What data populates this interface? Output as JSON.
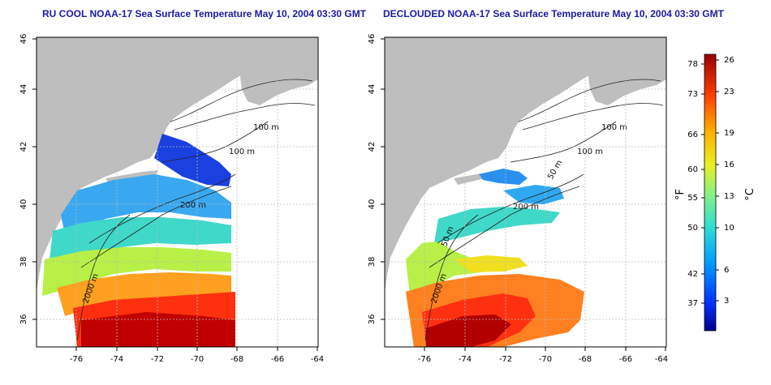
{
  "panels": [
    {
      "title": "RU COOL NOAA-17 Sea Surface Temperature May 10, 2004 03:30 GMT",
      "x_ticks": [
        "-76",
        "-74",
        "-72",
        "-70",
        "-68",
        "-66",
        "-64"
      ],
      "y_ticks": [
        "36",
        "38",
        "40",
        "42",
        "44",
        "46"
      ],
      "contour_labels": [
        "100 m",
        "100 m",
        "200 m",
        "2000 m"
      ]
    },
    {
      "title": "DECLOUDED NOAA-17 Sea Surface Temperature May 10, 2004 03:30 GMT",
      "x_ticks": [
        "-76",
        "-74",
        "-72",
        "-70",
        "-68",
        "-66",
        "-64"
      ],
      "y_ticks": [
        "36",
        "38",
        "40",
        "42",
        "44",
        "46"
      ],
      "contour_labels": [
        "100 m",
        "100 m",
        "50 m",
        "200 m",
        "50 m",
        "2000 m"
      ]
    }
  ],
  "colorbar": {
    "left_unit": "°F",
    "right_unit": "°C",
    "fahrenheit_ticks": [
      "78",
      "73",
      "66",
      "60",
      "55",
      "50",
      "42",
      "37"
    ],
    "celsius_ticks": [
      "26",
      "23",
      "19",
      "16",
      "13",
      "10",
      "6",
      "3"
    ]
  },
  "colors": {
    "land": "#bebebe",
    "sst_scale": [
      "#00008b",
      "#0040ff",
      "#00b0ff",
      "#40e0c0",
      "#a0f060",
      "#f0f020",
      "#ff9000",
      "#ff2000",
      "#a00000"
    ]
  }
}
